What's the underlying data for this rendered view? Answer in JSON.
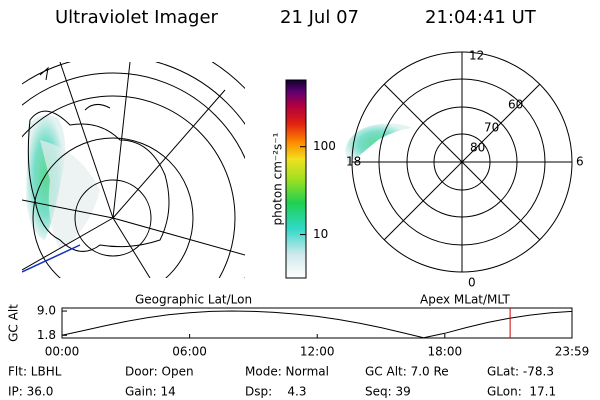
{
  "header": {
    "title": "Ultraviolet Imager",
    "date": "21 Jul 07",
    "time": "21:04:41 UT"
  },
  "colorbar": {
    "label": "photon cm⁻²s⁻¹",
    "scale": "log",
    "lim": [
      3.2,
      575
    ],
    "ticks": [
      10,
      100
    ]
  },
  "polar_labels": {
    "lat": [
      "80",
      "70",
      "60"
    ],
    "mlt": [
      "12",
      "18",
      "6",
      "0"
    ]
  },
  "panels": {
    "left": "Geographic Lat/Lon",
    "right": "Apex MLat/MLT"
  },
  "chart_data": {
    "type": "line",
    "y_label": "GC Alt",
    "x": [
      0,
      1,
      2,
      3,
      4,
      5,
      6,
      7,
      8,
      9,
      10,
      11,
      12,
      13,
      14,
      15,
      16,
      17,
      18,
      19,
      20,
      21,
      22,
      23,
      23.98
    ],
    "values": [
      1.8,
      3.2,
      4.6,
      5.9,
      7.0,
      7.9,
      8.5,
      8.9,
      9.0,
      8.9,
      8.6,
      8.1,
      7.4,
      6.5,
      5.4,
      4.1,
      2.6,
      1.1,
      2.4,
      4.1,
      5.6,
      6.8,
      7.8,
      8.5,
      8.9
    ],
    "color": "#000000",
    "marker_x": 21.07,
    "marker_color": "#cc0000",
    "xlim": [
      0,
      23.98
    ],
    "ylim": [
      1.0,
      9.9
    ],
    "xticks": [
      {
        "value": 0,
        "label": "00:00"
      },
      {
        "value": 6,
        "label": "06:00"
      },
      {
        "value": 12,
        "label": "12:00"
      },
      {
        "value": 18,
        "label": "18:00"
      },
      {
        "value": 23.98,
        "label": "23:59"
      }
    ],
    "yticks": [
      {
        "value": 9,
        "label": "9.0"
      },
      {
        "value": 1.8,
        "label": "1.8"
      }
    ]
  },
  "info": {
    "rows": [
      [
        "Flt: LBHL",
        "Door: Open",
        "Mode: Normal",
        "GC Alt: 7.0 Re",
        "GLat: -78.3"
      ],
      [
        "IP: 36.0",
        "Gain: 14",
        "Dsp:    4.3",
        "Seq: 39",
        "GLon:  17.1"
      ]
    ]
  }
}
